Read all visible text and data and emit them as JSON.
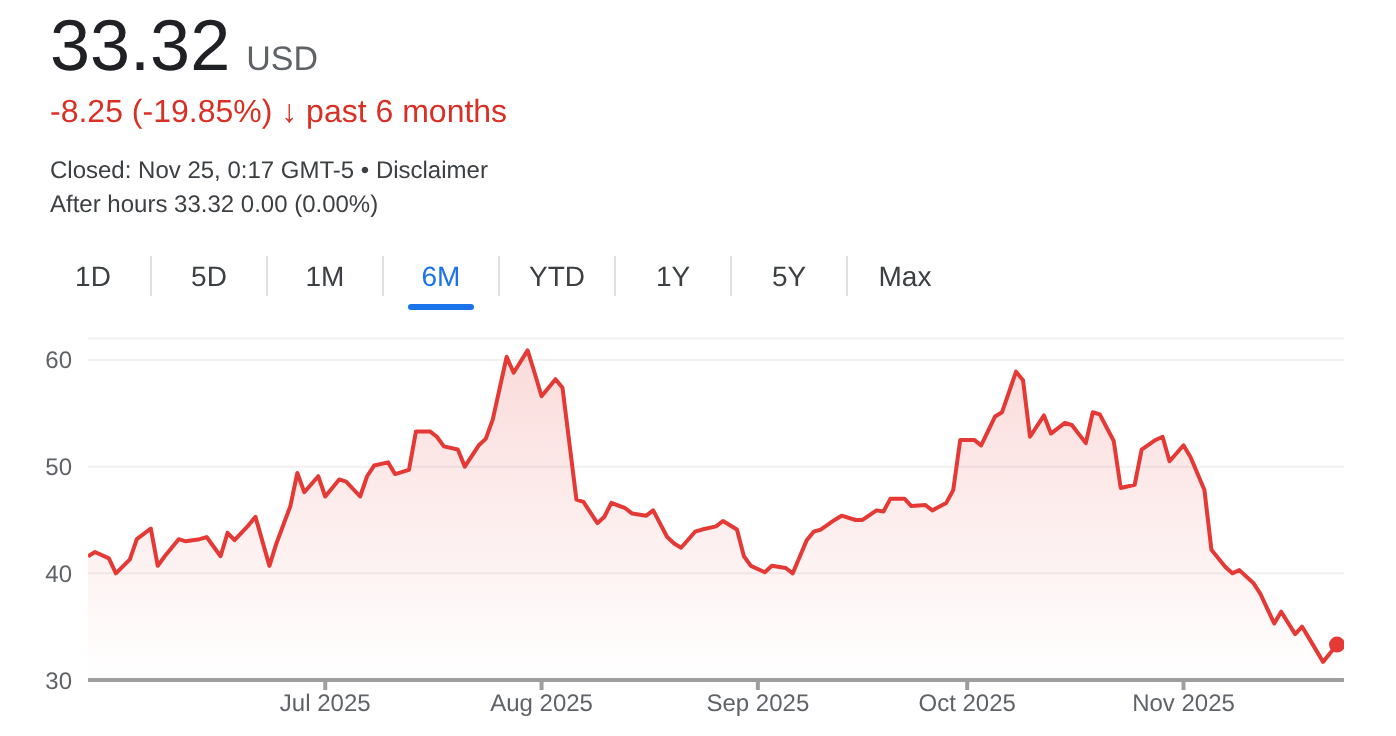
{
  "chart_data": {
    "type": "area",
    "title": "33.32 USD",
    "subtitle": "-8.25 (-19.85%) ↓ past 6 months",
    "annotations": [
      "Closed: Nov 25, 0:17 GMT-5 • Disclaimer",
      "After hours 33.32 0.00 (0.00%)",
      "1D",
      "5D",
      "1M",
      "6M",
      "YTD",
      "1Y",
      "5Y",
      "Max"
    ],
    "x": [
      "2025-05-28",
      "2025-05-29",
      "2025-05-31",
      "2025-06-01",
      "2025-06-03",
      "2025-06-04",
      "2025-06-06",
      "2025-06-07",
      "2025-06-08",
      "2025-06-10",
      "2025-06-11",
      "2025-06-13",
      "2025-06-14",
      "2025-06-16",
      "2025-06-17",
      "2025-06-18",
      "2025-06-20",
      "2025-06-21",
      "2025-06-23",
      "2025-06-24",
      "2025-06-26",
      "2025-06-27",
      "2025-06-28",
      "2025-06-30",
      "2025-07-01",
      "2025-07-03",
      "2025-07-04",
      "2025-07-06",
      "2025-07-07",
      "2025-07-08",
      "2025-07-10",
      "2025-07-11",
      "2025-07-13",
      "2025-07-14",
      "2025-07-16",
      "2025-07-17",
      "2025-07-18",
      "2025-07-20",
      "2025-07-21",
      "2025-07-23",
      "2025-07-24",
      "2025-07-25",
      "2025-07-27",
      "2025-07-28",
      "2025-07-30",
      "2025-07-31",
      "2025-08-01",
      "2025-08-03",
      "2025-08-04",
      "2025-08-06",
      "2025-08-07",
      "2025-08-09",
      "2025-08-10",
      "2025-08-11",
      "2025-08-13",
      "2025-08-14",
      "2025-08-16",
      "2025-08-17",
      "2025-08-19",
      "2025-08-20",
      "2025-08-21",
      "2025-08-23",
      "2025-08-24",
      "2025-08-26",
      "2025-08-27",
      "2025-08-29",
      "2025-08-30",
      "2025-08-31",
      "2025-09-02",
      "2025-09-03",
      "2025-09-05",
      "2025-09-06",
      "2025-09-08",
      "2025-09-09",
      "2025-09-10",
      "2025-09-12",
      "2025-09-13",
      "2025-09-15",
      "2025-09-16",
      "2025-09-18",
      "2025-09-19",
      "2025-09-20",
      "2025-09-22",
      "2025-09-23",
      "2025-09-25",
      "2025-09-26",
      "2025-09-28",
      "2025-09-29",
      "2025-09-30",
      "2025-10-02",
      "2025-10-03",
      "2025-10-05",
      "2025-10-06",
      "2025-10-08",
      "2025-10-09",
      "2025-10-10",
      "2025-10-12",
      "2025-10-13",
      "2025-10-15",
      "2025-10-16",
      "2025-10-18",
      "2025-10-19",
      "2025-10-20",
      "2025-10-22",
      "2025-10-23",
      "2025-10-25",
      "2025-10-26",
      "2025-10-28",
      "2025-10-29",
      "2025-10-30",
      "2025-11-01",
      "2025-11-02",
      "2025-11-04",
      "2025-11-05",
      "2025-11-07",
      "2025-11-08",
      "2025-11-09",
      "2025-11-11",
      "2025-11-12",
      "2025-11-14",
      "2025-11-15",
      "2025-11-17",
      "2025-11-18",
      "2025-11-19",
      "2025-11-21",
      "2025-11-22",
      "2025-11-23"
    ],
    "series": [
      {
        "color": "#e53935",
        "values": [
          41.6,
          42.0,
          41.4,
          40.0,
          41.3,
          43.2,
          44.2,
          40.7,
          41.6,
          43.2,
          43.0,
          43.2,
          43.4,
          41.6,
          43.8,
          43.1,
          44.5,
          45.3,
          40.7,
          42.8,
          46.3,
          49.4,
          47.6,
          49.1,
          47.2,
          48.8,
          48.6,
          47.2,
          49.1,
          50.1,
          50.4,
          49.3,
          49.7,
          53.3,
          53.3,
          52.8,
          51.9,
          51.6,
          50.0,
          52.0,
          52.6,
          54.4,
          60.3,
          58.8,
          60.9,
          58.8,
          56.6,
          58.2,
          57.4,
          46.9,
          46.7,
          44.7,
          45.3,
          46.6,
          46.1,
          45.6,
          45.4,
          45.9,
          43.4,
          42.8,
          42.4,
          43.9,
          44.1,
          44.4,
          44.9,
          44.1,
          41.6,
          40.7,
          40.1,
          40.7,
          40.5,
          40.0,
          43.1,
          43.9,
          44.1,
          45.0,
          45.4,
          45.0,
          45.0,
          45.9,
          45.8,
          47.0,
          47.0,
          46.3,
          46.4,
          45.9,
          46.6,
          47.8,
          52.5,
          52.5,
          52.0,
          54.7,
          55.1,
          58.9,
          58.1,
          52.8,
          54.8,
          53.1,
          54.1,
          53.9,
          52.2,
          55.1,
          54.9,
          52.4,
          48.0,
          48.3,
          51.6,
          52.5,
          52.8,
          50.5,
          52.0,
          50.9,
          47.8,
          42.2,
          40.6,
          40.0,
          40.3,
          39.1,
          38.1,
          35.3,
          36.4,
          34.3,
          35.0,
          33.9,
          31.7,
          32.5,
          33.32
        ]
      }
    ],
    "xlim": [
      "2025-05-28",
      "2025-11-24"
    ],
    "xticks": [
      {
        "value": "2025-07-01",
        "label": "Jul 2025"
      },
      {
        "value": "2025-08-01",
        "label": "Aug 2025"
      },
      {
        "value": "2025-09-01",
        "label": "Sep 2025"
      },
      {
        "value": "2025-10-01",
        "label": "Oct 2025"
      },
      {
        "value": "2025-11-01",
        "label": "Nov 2025"
      }
    ],
    "ylim": [
      30,
      62
    ],
    "yticks": [
      30,
      40,
      50,
      60
    ],
    "grid": "y",
    "legend": false
  }
}
